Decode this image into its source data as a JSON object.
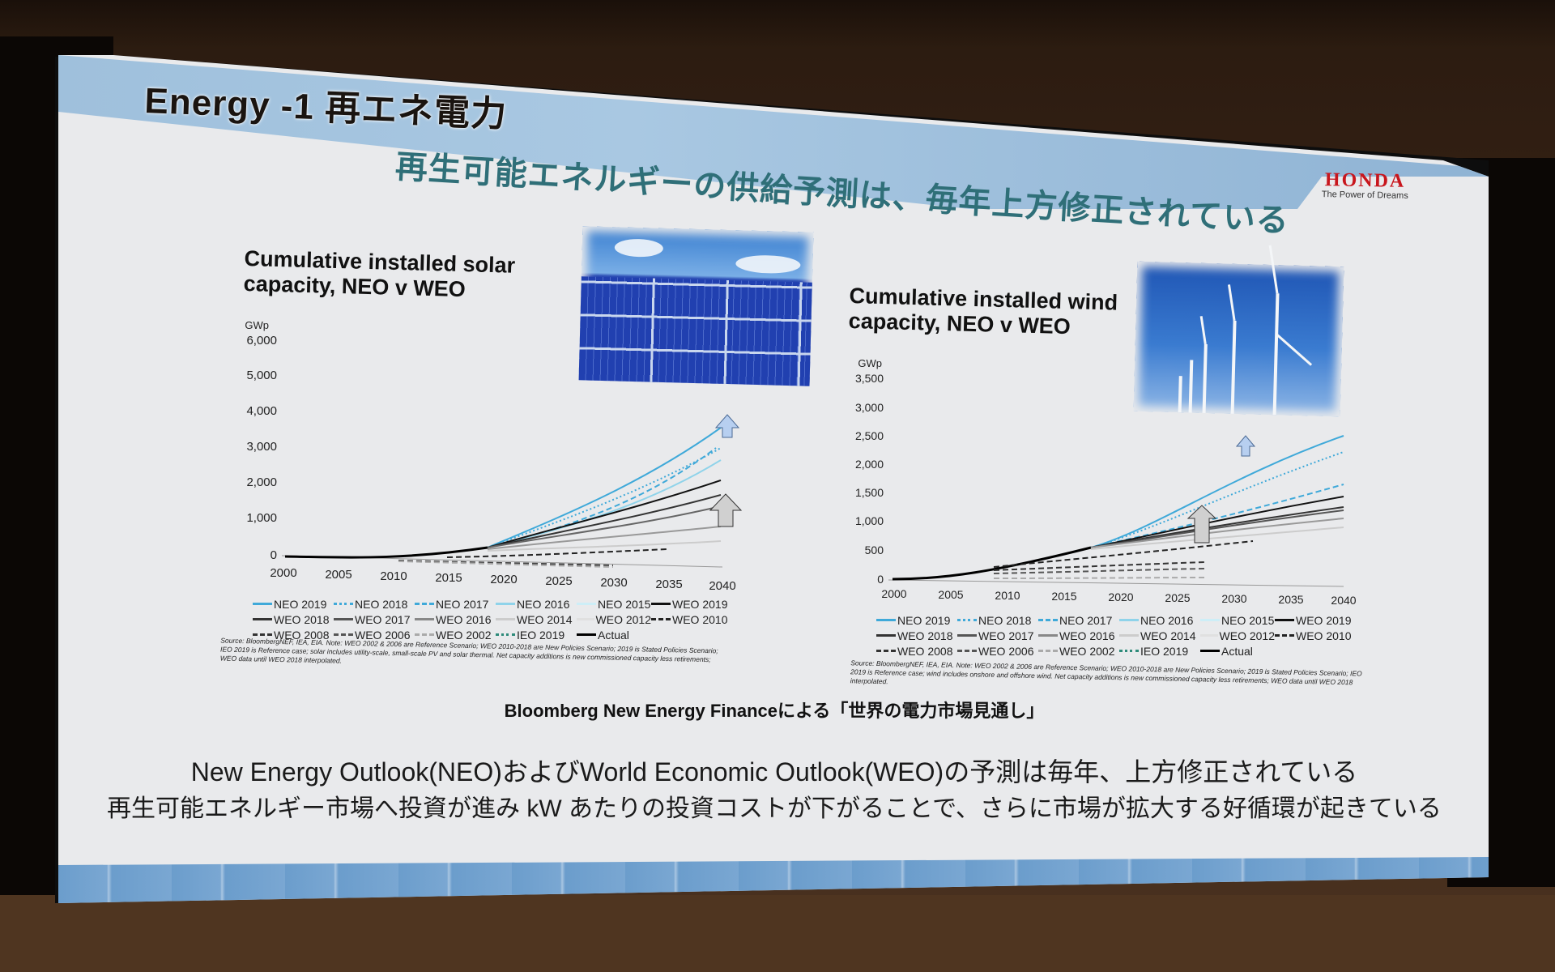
{
  "slide": {
    "header_title": "Energy -1  再エネ電力",
    "subtitle": "再生可能エネルギーの供給予測は、毎年上方修正されている",
    "brand": {
      "logo": "HONDA",
      "tagline": "The Power of Dreams",
      "color": "#c8161d"
    },
    "bnef_caption": "Bloomberg New Energy Financeによる「世界の電力市場見通し」",
    "summary_lines": [
      "New Energy Outlook(NEO)およびWorld Economic Outlook(WEO)の予測は毎年、上方修正されている",
      "再生可能エネルギー市場へ投資が進み kW あたりの投資コストが下がることで、さらに市場が拡大する好循環が起きている"
    ],
    "colors": {
      "subtitle": "#2f6f78",
      "band": "#8fb3d4",
      "neo": "#3fa9d9"
    }
  },
  "legend": [
    {
      "label": "NEO 2019",
      "style": "solid",
      "color": "#3fa9d9"
    },
    {
      "label": "NEO 2018",
      "style": "dotted",
      "color": "#3fa9d9"
    },
    {
      "label": "NEO 2017",
      "style": "dashed",
      "color": "#3fa9d9"
    },
    {
      "label": "NEO 2016",
      "style": "solid",
      "color": "#8fd3ea"
    },
    {
      "label": "NEO 2015",
      "style": "solid",
      "color": "#cdeef7"
    },
    {
      "label": "WEO 2019",
      "style": "solid",
      "color": "#111111"
    },
    {
      "label": "WEO 2018",
      "style": "solid",
      "color": "#333333"
    },
    {
      "label": "WEO 2017",
      "style": "solid",
      "color": "#555555"
    },
    {
      "label": "WEO 2016",
      "style": "solid",
      "color": "#888888"
    },
    {
      "label": "WEO 2014",
      "style": "solid",
      "color": "#cccccc"
    },
    {
      "label": "WEO 2012",
      "style": "solid",
      "color": "#e0e0e0"
    },
    {
      "label": "WEO 2010",
      "style": "dashed",
      "color": "#222222"
    },
    {
      "label": "WEO 2008",
      "style": "dashed",
      "color": "#333333"
    },
    {
      "label": "WEO 2006",
      "style": "dashed",
      "color": "#555555"
    },
    {
      "label": "WEO 2002",
      "style": "dashed",
      "color": "#aaaaaa"
    },
    {
      "label": "IEO 2019",
      "style": "dotted",
      "color": "#2e8b7a"
    },
    {
      "label": "Actual",
      "style": "solid",
      "color": "#000000"
    }
  ],
  "solar": {
    "title_lines": [
      "Cumulative installed solar",
      "capacity, NEO v WEO"
    ],
    "unit": "GWp",
    "yticks": [
      "6,000",
      "5,000",
      "4,000",
      "3,000",
      "2,000",
      "1,000",
      "0"
    ],
    "xticks": [
      "2000",
      "2005",
      "2010",
      "2015",
      "2020",
      "2025",
      "2030",
      "2035",
      "2040"
    ],
    "source": "Source: BloombergNEF, IEA, EIA. Note: WEO 2002 & 2006 are Reference Scenario; WEO 2010-2018 are New Policies Scenario; 2019 is Stated Policies Scenario; IEO 2019 is Reference case; solar includes utility-scale, small-scale PV and solar thermal. Net capacity additions is new commissioned capacity less retirements; WEO data until WEO 2018 interpolated."
  },
  "wind": {
    "title_lines": [
      "Cumulative installed wind",
      "capacity, NEO v WEO"
    ],
    "unit": "GWp",
    "yticks": [
      "3,500",
      "3,000",
      "2,500",
      "2,000",
      "1,500",
      "1,000",
      "500",
      "0"
    ],
    "xticks": [
      "2000",
      "2005",
      "2010",
      "2015",
      "2020",
      "2025",
      "2030",
      "2035",
      "2040"
    ],
    "source": "Source: BloombergNEF, IEA, EIA. Note: WEO 2002 & 2006 are Reference Scenario; WEO 2010-2018 are New Policies Scenario; 2019 is Stated Policies Scenario; IEO 2019 is Reference case; wind includes onshore and offshore wind. Net capacity additions is new commissioned capacity less retirements; WEO data until WEO 2018 interpolated."
  },
  "chart_data": [
    {
      "type": "line",
      "title": "Cumulative installed solar capacity, NEO v WEO",
      "xlabel": "",
      "ylabel": "GWp",
      "ylim": [
        0,
        6000
      ],
      "x": [
        2000,
        2010,
        2018,
        2025,
        2030,
        2035,
        2040
      ],
      "series": [
        {
          "name": "Actual",
          "values": [
            1,
            40,
            480,
            null,
            null,
            null,
            null
          ]
        },
        {
          "name": "NEO 2019",
          "values": [
            null,
            null,
            480,
            1500,
            2400,
            3300,
            4300
          ]
        },
        {
          "name": "NEO 2018",
          "values": [
            null,
            null,
            480,
            1350,
            2150,
            2950,
            3800
          ]
        },
        {
          "name": "NEO 2017",
          "values": [
            null,
            null,
            480,
            1200,
            2000,
            2800,
            3800
          ]
        },
        {
          "name": "NEO 2016",
          "values": [
            null,
            null,
            480,
            1150,
            1850,
            2500,
            3200
          ]
        },
        {
          "name": "WEO 2019",
          "values": [
            null,
            null,
            480,
            1200,
            1700,
            2150,
            2600
          ]
        },
        {
          "name": "WEO 2018",
          "values": [
            null,
            null,
            480,
            1050,
            1450,
            1750,
            2050
          ]
        },
        {
          "name": "WEO 2017",
          "values": [
            null,
            null,
            480,
            950,
            1200,
            1400,
            1650
          ]
        },
        {
          "name": "WEO 2016",
          "values": [
            null,
            null,
            450,
            700,
            850,
            950,
            1000
          ]
        },
        {
          "name": "WEO 2014",
          "values": [
            null,
            null,
            400,
            550,
            600,
            650,
            700
          ]
        },
        {
          "name": "WEO 2012",
          "values": [
            null,
            null,
            300,
            380,
            420,
            460,
            500
          ]
        },
        {
          "name": "WEO 2010",
          "values": [
            null,
            40,
            100,
            180,
            220,
            260,
            null
          ]
        },
        {
          "name": "WEO 2008",
          "values": [
            null,
            20,
            40,
            60,
            80,
            null,
            null
          ]
        },
        {
          "name": "WEO 2006",
          "values": [
            null,
            10,
            20,
            30,
            40,
            null,
            null
          ]
        },
        {
          "name": "WEO 2002",
          "values": [
            null,
            5,
            10,
            15,
            20,
            null,
            null
          ]
        }
      ]
    },
    {
      "type": "line",
      "title": "Cumulative installed wind capacity, NEO v WEO",
      "xlabel": "",
      "ylabel": "GWp",
      "ylim": [
        0,
        3500
      ],
      "x": [
        2000,
        2010,
        2018,
        2025,
        2030,
        2035,
        2040
      ],
      "series": [
        {
          "name": "Actual",
          "values": [
            17,
            180,
            560,
            null,
            null,
            null,
            null
          ]
        },
        {
          "name": "NEO 2019",
          "values": [
            null,
            null,
            560,
            1100,
            1600,
            2150,
            2550
          ]
        },
        {
          "name": "NEO 2018",
          "values": [
            null,
            null,
            560,
            1050,
            1450,
            1900,
            2300
          ]
        },
        {
          "name": "NEO 2017",
          "values": [
            null,
            null,
            560,
            900,
            1200,
            1500,
            1800
          ]
        },
        {
          "name": "NEO 2016",
          "values": [
            null,
            null,
            560,
            880,
            1150,
            1400,
            1650
          ]
        },
        {
          "name": "WEO 2019",
          "values": [
            null,
            null,
            560,
            850,
            1050,
            1300,
            1500
          ]
        },
        {
          "name": "WEO 2018",
          "values": [
            null,
            null,
            560,
            820,
            1000,
            1200,
            1370
          ]
        },
        {
          "name": "WEO 2017",
          "values": [
            null,
            null,
            560,
            800,
            980,
            1150,
            1320
          ]
        },
        {
          "name": "WEO 2016",
          "values": [
            null,
            null,
            550,
            780,
            950,
            1100,
            1300
          ]
        },
        {
          "name": "WEO 2014",
          "values": [
            null,
            null,
            530,
            750,
            900,
            1050,
            1200
          ]
        },
        {
          "name": "WEO 2012",
          "values": [
            null,
            null,
            500,
            700,
            820,
            920,
            1000
          ]
        },
        {
          "name": "WEO 2010",
          "values": [
            null,
            200,
            400,
            550,
            650,
            750,
            null
          ]
        },
        {
          "name": "WEO 2008",
          "values": [
            null,
            150,
            280,
            400,
            480,
            null,
            null
          ]
        },
        {
          "name": "WEO 2006",
          "values": [
            null,
            120,
            200,
            260,
            300,
            null,
            null
          ]
        },
        {
          "name": "WEO 2002",
          "values": [
            null,
            60,
            100,
            120,
            130,
            null,
            null
          ]
        }
      ]
    }
  ]
}
